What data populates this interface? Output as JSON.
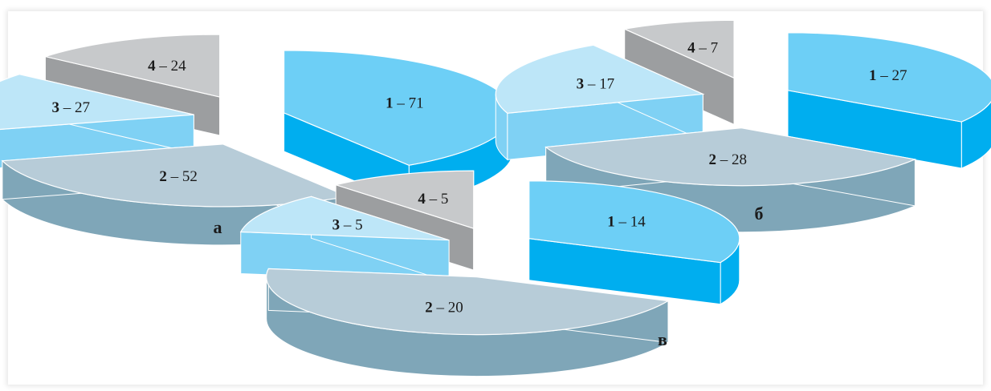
{
  "colors": {
    "s1_top": "#6dcff6",
    "s1_side": "#00aeef",
    "s1_side_dark": "#0096d6",
    "s2_top": "#b7ccd8",
    "s2_side": "#7fa6b8",
    "s3_top": "#bde6f8",
    "s3_side": "#7fd1f4",
    "s4_top": "#c7c9cb",
    "s4_side": "#9c9ea0"
  },
  "chart_data": [
    {
      "type": "pie",
      "caption": "а",
      "slices": [
        {
          "id": "1",
          "value": 71,
          "label": "– 71"
        },
        {
          "id": "2",
          "value": 52,
          "label": "– 52"
        },
        {
          "id": "3",
          "value": 27,
          "label": "– 27"
        },
        {
          "id": "4",
          "value": 24,
          "label": "– 24"
        }
      ]
    },
    {
      "type": "pie",
      "caption": "б",
      "slices": [
        {
          "id": "1",
          "value": 27,
          "label": "– 27"
        },
        {
          "id": "2",
          "value": 28,
          "label": "– 28"
        },
        {
          "id": "3",
          "value": 17,
          "label": "– 17"
        },
        {
          "id": "4",
          "value": 7,
          "label": "– 7"
        }
      ]
    },
    {
      "type": "pie",
      "caption": "в",
      "slices": [
        {
          "id": "1",
          "value": 14,
          "label": "– 14"
        },
        {
          "id": "2",
          "value": 20,
          "label": "– 20"
        },
        {
          "id": "3",
          "value": 5,
          "label": "– 5"
        },
        {
          "id": "4",
          "value": 5,
          "label": "– 5"
        }
      ]
    }
  ]
}
